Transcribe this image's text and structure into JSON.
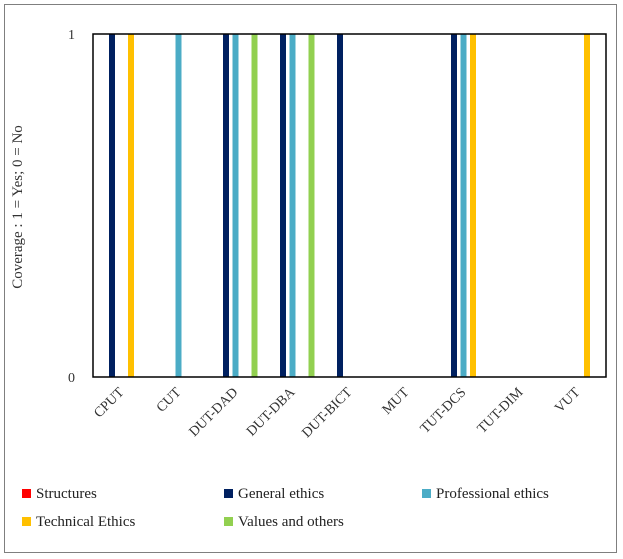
{
  "chart_data": {
    "type": "bar",
    "title": "",
    "xlabel": "",
    "ylabel": "Coverage : 1 = Yes; 0 = No",
    "ylim": [
      0,
      1
    ],
    "yticks": [
      "0",
      "1"
    ],
    "grid": false,
    "legend_position": "bottom",
    "categories": [
      "CPUT",
      "CUT",
      "DUT-DAD",
      "DUT-DBA",
      "DUT-BICT",
      "MUT",
      "TUT-DCS",
      "TUT-DIM",
      "VUT"
    ],
    "series": [
      {
        "name": "Structures",
        "color": "#ff0000",
        "values": [
          0,
          0,
          0,
          0,
          0,
          0,
          0,
          0,
          0
        ]
      },
      {
        "name": "General ethics",
        "color": "#002060",
        "values": [
          1,
          0,
          1,
          1,
          1,
          0,
          1,
          0,
          0
        ]
      },
      {
        "name": "Professional ethics",
        "color": "#4bacc6",
        "values": [
          0,
          1,
          1,
          1,
          0,
          0,
          1,
          0,
          0
        ]
      },
      {
        "name": "Technical Ethics",
        "color": "#ffc000",
        "values": [
          1,
          0,
          0,
          0,
          0,
          0,
          1,
          0,
          1
        ]
      },
      {
        "name": "Values and others",
        "color": "#92d050",
        "values": [
          0,
          0,
          1,
          1,
          0,
          0,
          0,
          0,
          0
        ]
      }
    ]
  }
}
